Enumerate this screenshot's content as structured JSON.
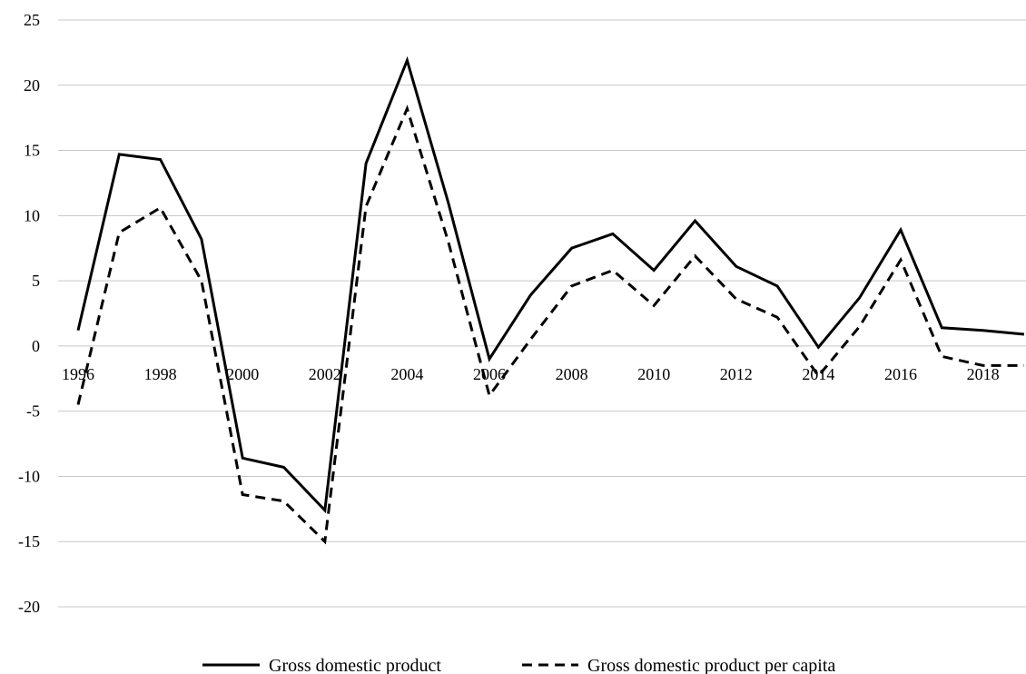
{
  "chart_data": {
    "type": "line",
    "title": "",
    "xlabel": "",
    "ylabel": "",
    "ylim": [
      -20,
      25
    ],
    "yticks": [
      25,
      20,
      15,
      10,
      5,
      0,
      -5,
      -10,
      -15,
      -20
    ],
    "ytick_labels": [
      "25",
      "20",
      "15",
      "10",
      "5",
      "0",
      "-5",
      "-10",
      "-15",
      "-20"
    ],
    "x": [
      1996,
      1997,
      1998,
      1999,
      2000,
      2001,
      2002,
      2003,
      2004,
      2005,
      2006,
      2007,
      2008,
      2009,
      2010,
      2011,
      2012,
      2013,
      2014,
      2015,
      2016,
      2017,
      2018,
      2019
    ],
    "xtick_labels": [
      "1996",
      "1998",
      "2000",
      "2002",
      "2004",
      "2006",
      "2008",
      "2010",
      "2012",
      "2014",
      "2016",
      "2018"
    ],
    "xtick_values": [
      1996,
      1998,
      2000,
      2002,
      2004,
      2006,
      2008,
      2010,
      2012,
      2014,
      2016,
      2018
    ],
    "grid": true,
    "legend_position": "bottom",
    "series": [
      {
        "name": "Gross domestic product",
        "style": "solid",
        "color": "#000000",
        "values": [
          1.2,
          14.7,
          14.3,
          8.2,
          -8.6,
          -9.3,
          -12.6,
          14.0,
          21.9,
          11.0,
          -1.0,
          3.9,
          7.5,
          8.6,
          5.8,
          9.6,
          6.1,
          4.6,
          -0.1,
          3.7,
          8.9,
          1.4,
          1.2,
          0.9
        ]
      },
      {
        "name": "Gross domestic product per capita",
        "style": "dashed",
        "color": "#000000",
        "values": [
          -4.5,
          8.7,
          10.6,
          5.0,
          -11.4,
          -11.9,
          -15.0,
          10.7,
          18.2,
          8.0,
          -3.8,
          0.5,
          4.6,
          5.8,
          3.1,
          6.9,
          3.6,
          2.2,
          -2.3,
          1.5,
          6.6,
          -0.8,
          -1.5,
          -1.5
        ]
      }
    ]
  }
}
